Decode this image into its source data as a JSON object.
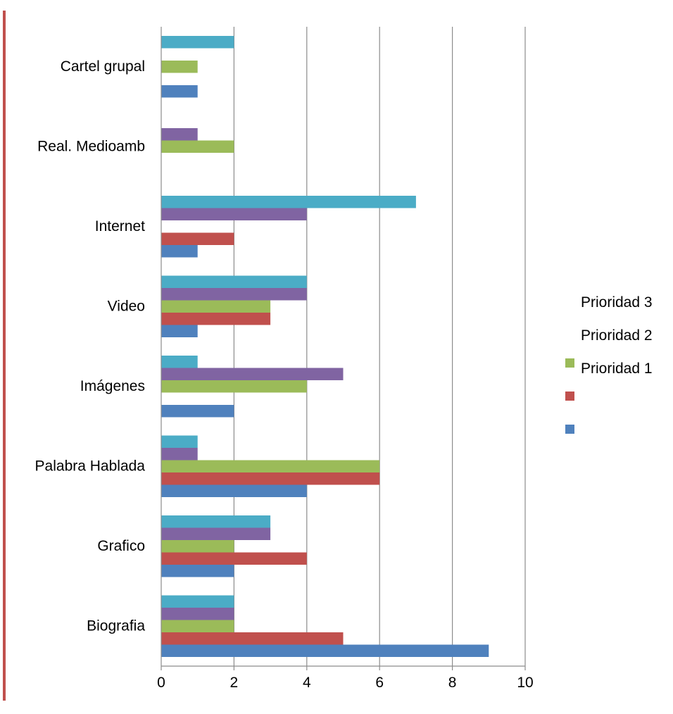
{
  "chart_data": {
    "type": "bar",
    "orientation": "horizontal",
    "title": "",
    "xlabel": "",
    "ylabel": "",
    "xlim": [
      0,
      10
    ],
    "x_ticks": [
      0,
      2,
      4,
      6,
      8,
      10
    ],
    "grid": "vertical major gridlines",
    "legend_position": "right",
    "categories": [
      "Biografia",
      "Grafico",
      "Palabra Hablada",
      "Imágenes",
      "Video",
      "Internet",
      "Real. Medioamb",
      "Cartel grupal"
    ],
    "series": [
      {
        "name": "",
        "color": "#4F81BD",
        "values": [
          9,
          2,
          4,
          2,
          1,
          1,
          0,
          1
        ]
      },
      {
        "name": "",
        "color": "#C0504D",
        "values": [
          5,
          4,
          6,
          0,
          3,
          2,
          0,
          0
        ]
      },
      {
        "name": "",
        "color": "#9BBB59",
        "values": [
          2,
          2,
          6,
          4,
          3,
          0,
          2,
          1
        ]
      },
      {
        "name": "",
        "color": "#8064A2",
        "values": [
          2,
          3,
          1,
          5,
          4,
          4,
          1,
          0
        ]
      },
      {
        "name": "",
        "color": "#4BACC6",
        "values": [
          2,
          3,
          1,
          1,
          4,
          7,
          0,
          2
        ]
      }
    ],
    "legend": [
      {
        "label": "Prioridad 3",
        "color": "#FFFFFF"
      },
      {
        "label": "Prioridad 2",
        "color": "#9BBB59"
      },
      {
        "label": "Prioridad 1",
        "color": "#C0504D"
      },
      {
        "label": "",
        "color": "#4F81BD"
      }
    ],
    "frame_color": "#C0504D"
  }
}
